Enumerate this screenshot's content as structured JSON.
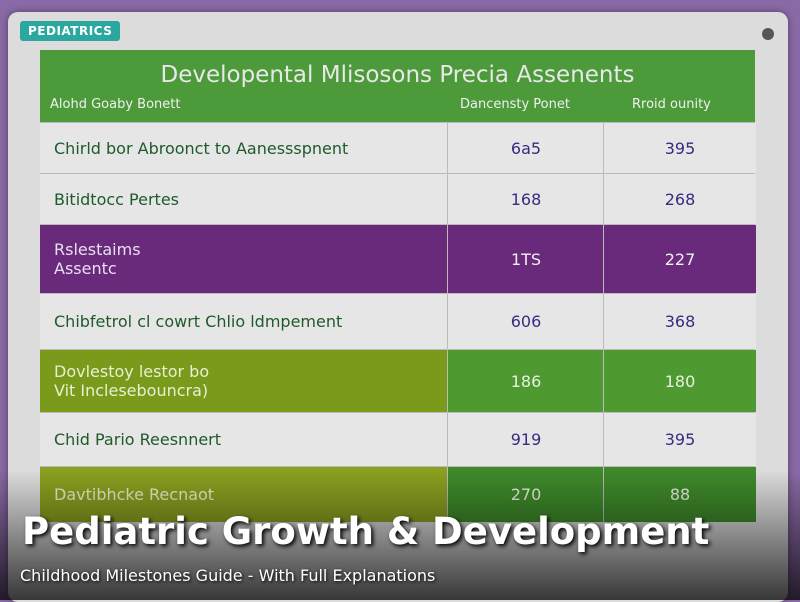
{
  "badge": "PEDIATRICS",
  "table": {
    "title": "Developental Mlisosons Precia Assenents",
    "header": [
      "Alohd Goaby Bonett",
      "Dancensty Ponet",
      "Rroid ounity"
    ],
    "rows": [
      [
        "Chirld bor Abroonct to Aanessspnent",
        "6a5",
        "395"
      ],
      [
        "Bitidtocc Pertes",
        "168",
        "268"
      ],
      [
        "Rslestaims\nAssentc",
        "1TS",
        "227"
      ],
      [
        "Chibfetrol cl cowrt Chlio ldmpement",
        "606",
        "368"
      ],
      [
        "Dovlestoy lestor bo\nVit Inclesebouncra)",
        "186",
        "180"
      ],
      [
        "Chid Pario Reesnnert",
        "919",
        "395"
      ],
      [
        "Davtibhcke Recnaot",
        "270",
        "88"
      ]
    ]
  },
  "overlay": {
    "title": "Pediatric Growth & Development",
    "subtitle": "Childhood Milestones Guide - With Full Explanations"
  }
}
